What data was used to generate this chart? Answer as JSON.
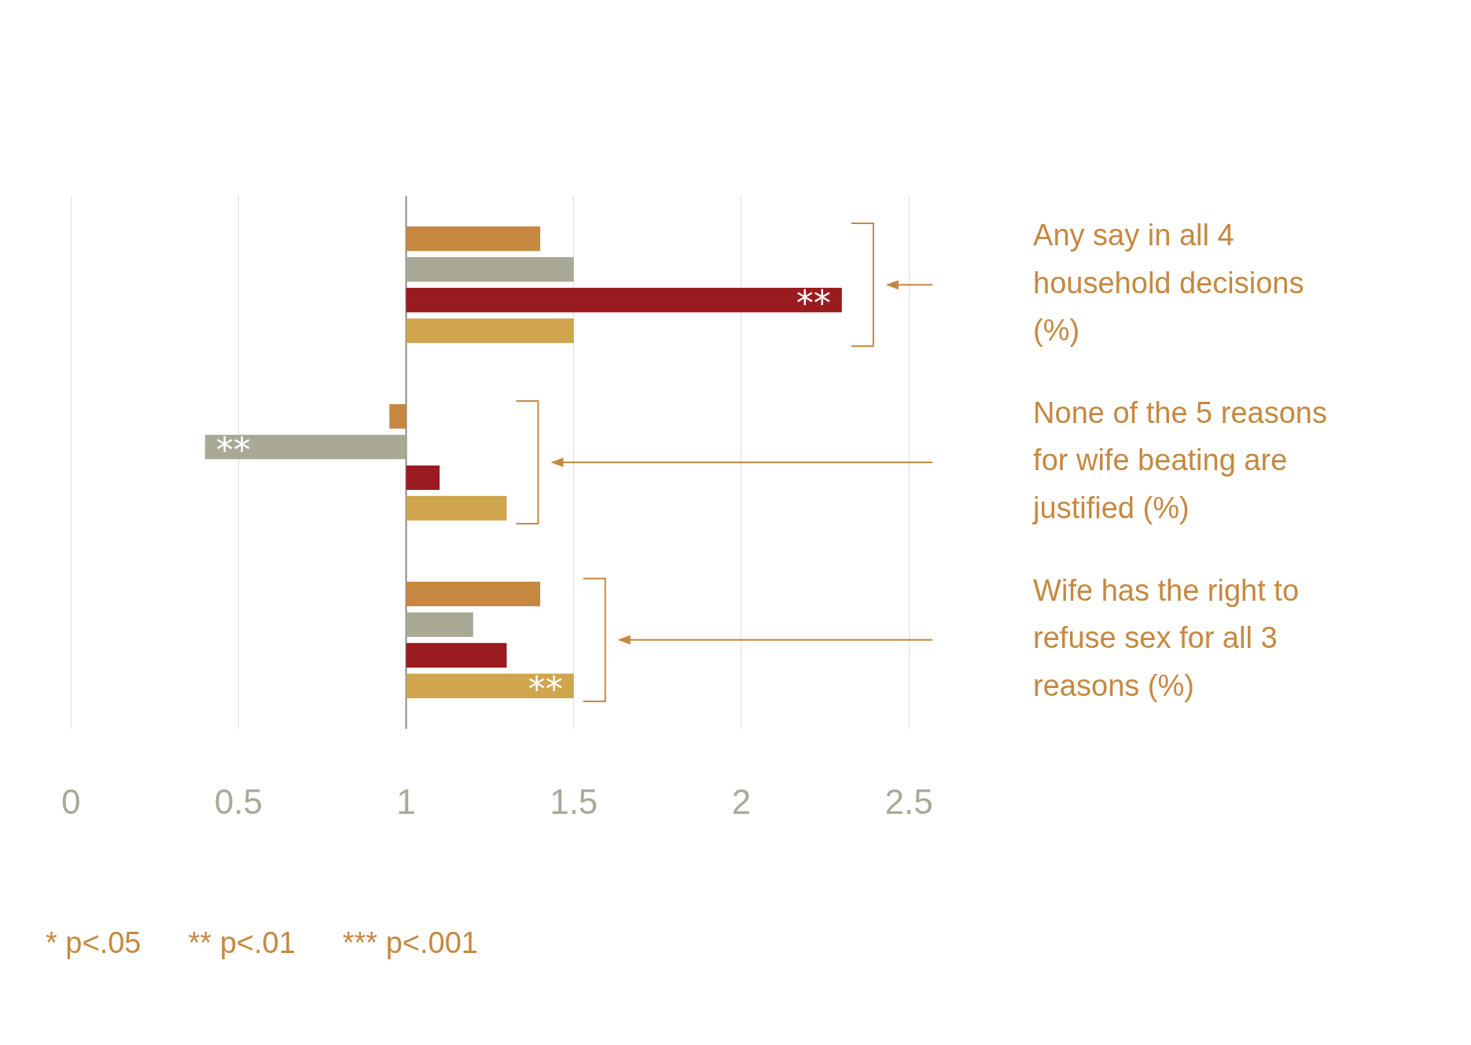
{
  "chart_data": {
    "type": "bar",
    "orientation": "horizontal",
    "categories": [
      "Any say in all 4 household decisions (%)",
      "None of the 5 reasons for wife beating are justified (%)",
      "Wife has the right to refuse sex for all 3 reasons (%)"
    ],
    "series": [
      {
        "color": "#c68840",
        "base": [
          1,
          1,
          1
        ],
        "values": [
          0.4,
          -0.05,
          0.4
        ]
      },
      {
        "color": "#aaa995",
        "base": [
          1,
          1,
          1
        ],
        "values": [
          0.5,
          -0.6,
          0.2
        ],
        "value_labels": [
          null,
          "**",
          null
        ]
      },
      {
        "color": "#9a1b20",
        "base": [
          1,
          1,
          1
        ],
        "values": [
          1.3,
          0.1,
          0.3
        ],
        "value_labels": [
          "**",
          null,
          null
        ]
      },
      {
        "color": "#cfa54d",
        "base": [
          1,
          1,
          1
        ],
        "values": [
          0.5,
          0.3,
          0.5
        ],
        "value_labels": [
          null,
          null,
          "**"
        ]
      }
    ],
    "xlim": [
      0,
      2.5
    ],
    "ref_lines": [
      {
        "axis": "x",
        "value": 1,
        "color": "#888888"
      }
    ],
    "xticks": [
      0,
      0.5,
      1,
      1.5,
      2,
      2.5
    ],
    "grid": "x",
    "legend": false,
    "annotations": [
      "* p<.05",
      "** p<.01",
      "*** p<.001"
    ]
  }
}
